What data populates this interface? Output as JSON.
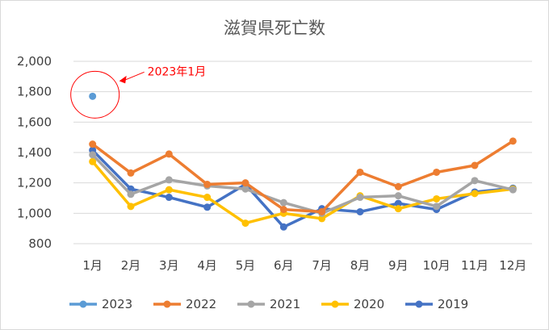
{
  "chart_data": {
    "type": "line",
    "title": "滋賀県死亡数",
    "categories": [
      "1月",
      "2月",
      "3月",
      "4月",
      "5月",
      "6月",
      "7月",
      "8月",
      "9月",
      "10月",
      "11月",
      "12月"
    ],
    "ylim": [
      800,
      2000
    ],
    "yticks": [
      800,
      1000,
      1200,
      1400,
      1600,
      1800,
      2000
    ],
    "ytick_labels": [
      "800",
      "1,000",
      "1,200",
      "1,400",
      "1,600",
      "1,800",
      "2,000"
    ],
    "grid": true,
    "legend_position": "bottom",
    "series": [
      {
        "name": "2023",
        "color": "#5b9bd5",
        "values": [
          1770,
          null,
          null,
          null,
          null,
          null,
          null,
          null,
          null,
          null,
          null,
          null
        ]
      },
      {
        "name": "2022",
        "color": "#ed7d31",
        "values": [
          1455,
          1265,
          1390,
          1190,
          1200,
          1025,
          1010,
          1270,
          1175,
          1270,
          1315,
          1475
        ]
      },
      {
        "name": "2021",
        "color": "#a5a5a5",
        "values": [
          1385,
          1125,
          1220,
          1180,
          1160,
          1070,
          1000,
          1105,
          1115,
          1045,
          1215,
          1155
        ]
      },
      {
        "name": "2020",
        "color": "#ffc000",
        "values": [
          1340,
          1045,
          1155,
          1105,
          935,
          1000,
          965,
          1115,
          1030,
          1095,
          1130,
          1160
        ]
      },
      {
        "name": "2019",
        "color": "#4472c4",
        "values": [
          1415,
          1160,
          1105,
          1040,
          1190,
          910,
          1030,
          1010,
          1065,
          1025,
          1140,
          1165
        ]
      }
    ],
    "annotation": {
      "text": "2023年1月",
      "color": "#ff0000",
      "series": "2023",
      "category": "1月"
    }
  }
}
